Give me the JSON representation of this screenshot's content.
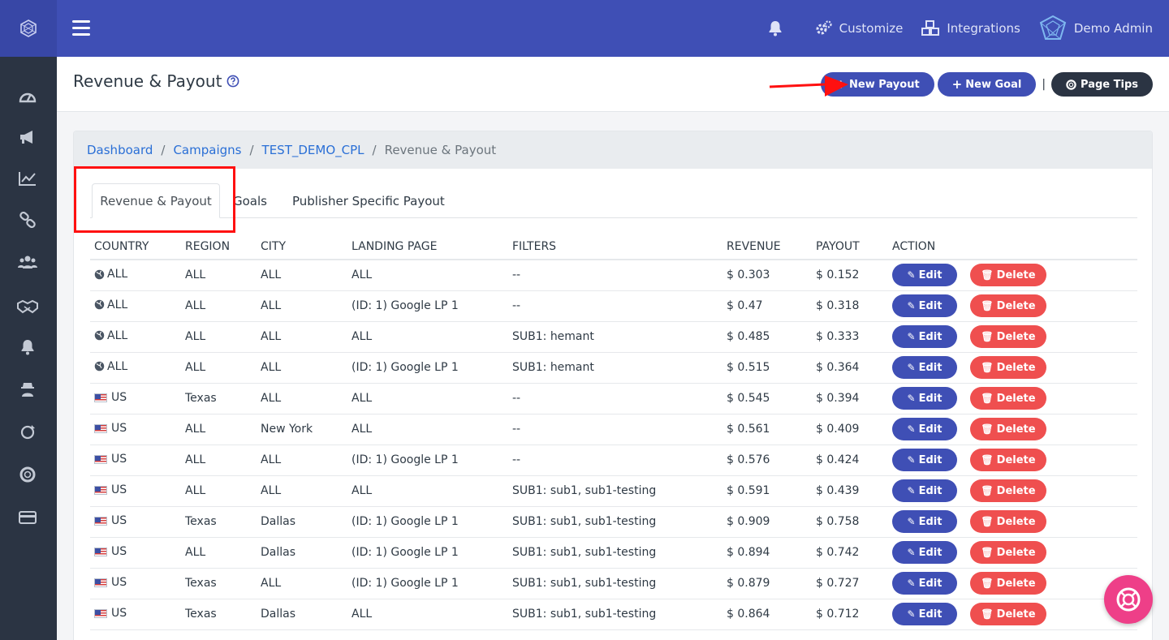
{
  "topbar": {
    "customize_label": "Customize",
    "integrations_label": "Integrations",
    "user_label": "Demo Admin"
  },
  "page": {
    "title": "Revenue & Payout",
    "new_payout_label": "New Payout",
    "new_goal_label": "New Goal",
    "separator": "|",
    "page_tips_label": "Page Tips"
  },
  "breadcrumb": {
    "items": [
      "Dashboard",
      "Campaigns",
      "TEST_DEMO_CPL"
    ],
    "divider": "/",
    "current": "Revenue & Payout"
  },
  "tabs": [
    "Revenue & Payout",
    "Goals",
    "Publisher Specific Payout"
  ],
  "table": {
    "headers": [
      "COUNTRY",
      "REGION",
      "CITY",
      "LANDING PAGE",
      "FILTERS",
      "REVENUE",
      "PAYOUT",
      "ACTION"
    ],
    "edit_label": "Edit",
    "delete_label": "Delete",
    "rows": [
      {
        "country": "ALL",
        "icon": "globe",
        "region": "ALL",
        "city": "ALL",
        "lp": "ALL",
        "filters": "--",
        "revenue": "$ 0.303",
        "payout": "$ 0.152"
      },
      {
        "country": "ALL",
        "icon": "globe",
        "region": "ALL",
        "city": "ALL",
        "lp": "(ID: 1) Google LP 1",
        "filters": "--",
        "revenue": "$ 0.47",
        "payout": "$ 0.318"
      },
      {
        "country": "ALL",
        "icon": "globe",
        "region": "ALL",
        "city": "ALL",
        "lp": "ALL",
        "filters": "SUB1: hemant",
        "revenue": "$ 0.485",
        "payout": "$ 0.333"
      },
      {
        "country": "ALL",
        "icon": "globe",
        "region": "ALL",
        "city": "ALL",
        "lp": "(ID: 1) Google LP 1",
        "filters": "SUB1: hemant",
        "revenue": "$ 0.515",
        "payout": "$ 0.364"
      },
      {
        "country": "US",
        "icon": "flag",
        "region": "Texas",
        "city": "ALL",
        "lp": "ALL",
        "filters": "--",
        "revenue": "$ 0.545",
        "payout": "$ 0.394"
      },
      {
        "country": "US",
        "icon": "flag",
        "region": "ALL",
        "city": "New York",
        "lp": "ALL",
        "filters": "--",
        "revenue": "$ 0.561",
        "payout": "$ 0.409"
      },
      {
        "country": "US",
        "icon": "flag",
        "region": "ALL",
        "city": "ALL",
        "lp": "(ID: 1) Google LP 1",
        "filters": "--",
        "revenue": "$ 0.576",
        "payout": "$ 0.424"
      },
      {
        "country": "US",
        "icon": "flag",
        "region": "ALL",
        "city": "ALL",
        "lp": "ALL",
        "filters": "SUB1: sub1, sub1-testing",
        "revenue": "$ 0.591",
        "payout": "$ 0.439"
      },
      {
        "country": "US",
        "icon": "flag",
        "region": "Texas",
        "city": "Dallas",
        "lp": "(ID: 1) Google LP 1",
        "filters": "SUB1: sub1, sub1-testing",
        "revenue": "$ 0.909",
        "payout": "$ 0.758"
      },
      {
        "country": "US",
        "icon": "flag",
        "region": "ALL",
        "city": "Dallas",
        "lp": "(ID: 1) Google LP 1",
        "filters": "SUB1: sub1, sub1-testing",
        "revenue": "$ 0.894",
        "payout": "$ 0.742"
      },
      {
        "country": "US",
        "icon": "flag",
        "region": "Texas",
        "city": "ALL",
        "lp": "(ID: 1) Google LP 1",
        "filters": "SUB1: sub1, sub1-testing",
        "revenue": "$ 0.879",
        "payout": "$ 0.727"
      },
      {
        "country": "US",
        "icon": "flag",
        "region": "Texas",
        "city": "Dallas",
        "lp": "ALL",
        "filters": "SUB1: sub1, sub1-testing",
        "revenue": "$ 0.864",
        "payout": "$ 0.712"
      }
    ]
  },
  "colors": {
    "brand": "#3f4fb5",
    "sidebar": "#2b3443",
    "danger": "#ef4f4f",
    "help_fab": "#ee3f88",
    "annotation": "#ff1010"
  },
  "sidebar_icons": [
    "dashboard-icon",
    "megaphone-icon",
    "chart-line-icon",
    "link-icon",
    "users-icon",
    "handshake-icon",
    "bell-icon",
    "user-secret-icon",
    "refresh-icon",
    "life-ring-icon",
    "credit-card-icon"
  ]
}
